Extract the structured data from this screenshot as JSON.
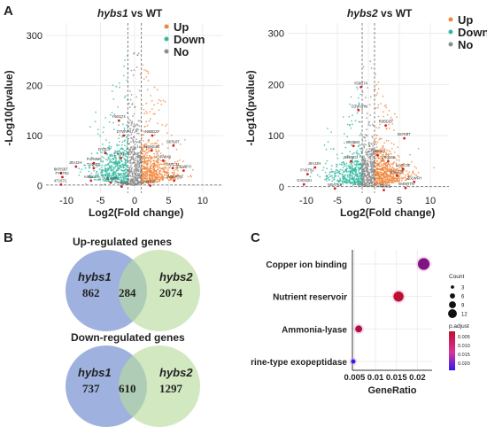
{
  "panels": {
    "A": "A",
    "B": "B",
    "C": "C"
  },
  "volcano_common": {
    "ylabel": "-Log10(pvalue)",
    "xlabel": "Log2(Fold change)",
    "legend": [
      {
        "label": "Up",
        "color": "#f0873c"
      },
      {
        "label": "Down",
        "color": "#33b8a0"
      },
      {
        "label": "No",
        "color": "#8c8c8c"
      }
    ]
  },
  "chart_data": [
    {
      "type": "scatter",
      "id": "volcano-hybs1",
      "title_italic": "hybs1",
      "title_rest": " vs WT",
      "xlim": [
        -13,
        13
      ],
      "ylim": [
        -15,
        325
      ],
      "xticks": [
        -10,
        -5,
        0,
        5,
        10
      ],
      "yticks": [
        0,
        100,
        200,
        300
      ],
      "thresholds": {
        "x": [
          -1,
          1
        ],
        "y": 1.3
      },
      "labels": [
        {
          "text": "Y56G74",
          "x": -2.3,
          "y": 130
        },
        {
          "text": "DTWVRU",
          "x": -1.6,
          "y": 100
        },
        {
          "text": "DYTL4",
          "x": -4.3,
          "y": 65
        },
        {
          "text": "N9BDZF",
          "x": 2.6,
          "y": 100
        },
        {
          "text": "S87K8T",
          "x": 5.7,
          "y": 80
        },
        {
          "text": "N8HG4B",
          "x": 2.5,
          "y": 70
        },
        {
          "text": "IOPA049",
          "x": 4.2,
          "y": 50
        },
        {
          "text": "FUR6MC",
          "x": -6.0,
          "y": 45
        },
        {
          "text": "EXIV1",
          "x": -2.0,
          "y": 55
        },
        {
          "text": "J5VJ2H",
          "x": -8.6,
          "y": 38
        },
        {
          "text": "T24ABT",
          "x": -6.0,
          "y": 35
        },
        {
          "text": "8KRS87",
          "x": -10.8,
          "y": 25
        },
        {
          "text": "FYKT8J",
          "x": -10.6,
          "y": 17
        },
        {
          "text": "4T1671",
          "x": -10.8,
          "y": 2
        },
        {
          "text": "A4GS2X",
          "x": -6.4,
          "y": 10
        },
        {
          "text": "Z3LWFH",
          "x": 7.2,
          "y": 30
        },
        {
          "text": "UATC31",
          "x": 5.6,
          "y": 35
        },
        {
          "text": "W4NRTN",
          "x": 5.8,
          "y": 10
        },
        {
          "text": "A4DO6",
          "x": 2.3,
          "y": 0
        },
        {
          "text": "P44B8H",
          "x": -1.9,
          "y": -2
        },
        {
          "text": "K4L5OR",
          "x": -3.5,
          "y": 6
        }
      ]
    },
    {
      "type": "scatter",
      "id": "volcano-hybs2",
      "title_italic": "hybs2",
      "title_rest": " vs WT",
      "xlim": [
        -13,
        13
      ],
      "ylim": [
        -12,
        320
      ],
      "xticks": [
        -10,
        -5,
        0,
        5,
        10
      ],
      "yticks": [
        0,
        100,
        200,
        300
      ],
      "thresholds": {
        "x": [
          -1,
          1
        ],
        "y": 1.3
      },
      "labels": [
        {
          "text": "Y56G74",
          "x": -1.2,
          "y": 195
        },
        {
          "text": "DTWVRU",
          "x": -1.6,
          "y": 150
        },
        {
          "text": "EXI3M3",
          "x": -2.4,
          "y": 80
        },
        {
          "text": "R9BDZF",
          "x": 2.8,
          "y": 120
        },
        {
          "text": "S87K8T",
          "x": 5.8,
          "y": 95
        },
        {
          "text": "FM3AH3",
          "x": 1.5,
          "y": 62
        },
        {
          "text": "N9E5DJ",
          "x": -2.8,
          "y": 50
        },
        {
          "text": "J5VJ2H",
          "x": -8.6,
          "y": 38
        },
        {
          "text": "FYKT8J",
          "x": -9.8,
          "y": 25
        },
        {
          "text": "G4GS2U",
          "x": -10.4,
          "y": 5
        },
        {
          "text": "M0A7K5",
          "x": -5.4,
          "y": -3
        },
        {
          "text": "UATC31",
          "x": 5.6,
          "y": 35
        },
        {
          "text": "UASFIR",
          "x": 4.6,
          "y": 22
        },
        {
          "text": "Z3LWFH",
          "x": 7.4,
          "y": 10
        },
        {
          "text": "W4NRTN",
          "x": 6.0,
          "y": -2
        },
        {
          "text": "A4D0E5",
          "x": 2.5,
          "y": -6
        },
        {
          "text": "2TKES8",
          "x": 3.2,
          "y": 50
        }
      ]
    },
    {
      "type": "scatter",
      "id": "go-dotplot",
      "xlabel": "GeneRatio",
      "xlim": [
        0.0045,
        0.0235
      ],
      "xticks": [
        0.005,
        0.01,
        0.015,
        0.02
      ],
      "xtick_labels": [
        "0.005",
        "0.01",
        "0.015",
        "0.02"
      ],
      "categories": [
        "Copper ion binding",
        "Nutrient reservoir",
        "Ammonia-lyase",
        "Serine-type exopeptidase"
      ],
      "points": [
        {
          "term": "Copper ion binding",
          "gene_ratio": 0.0215,
          "count": 12,
          "p_adjust": 0.011
        },
        {
          "term": "Nutrient reservoir",
          "gene_ratio": 0.0155,
          "count": 10,
          "p_adjust": 0.0005
        },
        {
          "term": "Ammonia-lyase",
          "gene_ratio": 0.006,
          "count": 6,
          "p_adjust": 0.003
        },
        {
          "term": "Serine-type exopeptidase",
          "gene_ratio": 0.0047,
          "count": 3,
          "p_adjust": 0.024
        }
      ],
      "size_legend": {
        "title": "Count",
        "values": [
          3,
          6,
          9,
          12
        ]
      },
      "color_legend": {
        "title": "p.adjust",
        "ticks": [
          "0.005",
          "0.010",
          "0.015",
          "0.020"
        ],
        "min_color": "#c0102b",
        "max_color": "#2b1cf0"
      }
    }
  ],
  "venn": {
    "up": {
      "title": "Up-regulated genes",
      "left_name": "hybs1",
      "right_name": "hybs2",
      "left_only": "862",
      "overlap": "284",
      "right_only": "2074"
    },
    "down": {
      "title": "Down-regulated genes",
      "left_name": "hybs1",
      "right_name": "hybs2",
      "left_only": "737",
      "overlap": "610",
      "right_only": "1297"
    }
  }
}
